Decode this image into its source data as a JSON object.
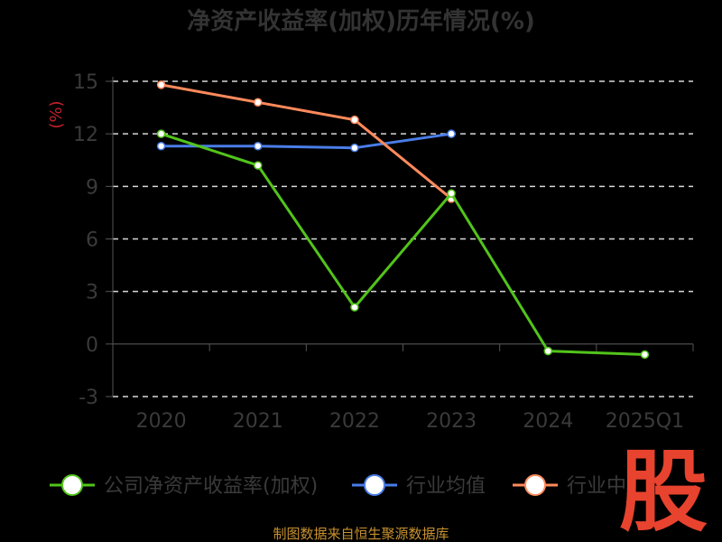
{
  "chart_data": {
    "type": "line",
    "title": "净资产收益率(加权)历年情况(%)",
    "ylabel": "(%)",
    "categories": [
      "2020",
      "2021",
      "2022",
      "2023",
      "2024",
      "2025Q1"
    ],
    "yticks": [
      "15",
      "12",
      "9",
      "6",
      "3",
      "0",
      "-3"
    ],
    "ylim": [
      -3,
      15
    ],
    "grid": true,
    "legend_position": "bottom",
    "series": [
      {
        "name": "公司净资产收益率(加权)",
        "color": "#52c41a",
        "values": [
          12.0,
          10.2,
          2.1,
          8.6,
          -0.4,
          -0.6
        ]
      },
      {
        "name": "行业均值",
        "color": "#4a7de8",
        "values": [
          11.3,
          11.3,
          11.2,
          12.0,
          null,
          null
        ]
      },
      {
        "name": "行业中位数",
        "legend_label": "行业中",
        "color": "#ff8a5c",
        "values": [
          14.8,
          13.8,
          12.8,
          8.3,
          null,
          null
        ]
      }
    ]
  },
  "footer": "制图数据来自恒生聚源数据库",
  "watermark": "股"
}
